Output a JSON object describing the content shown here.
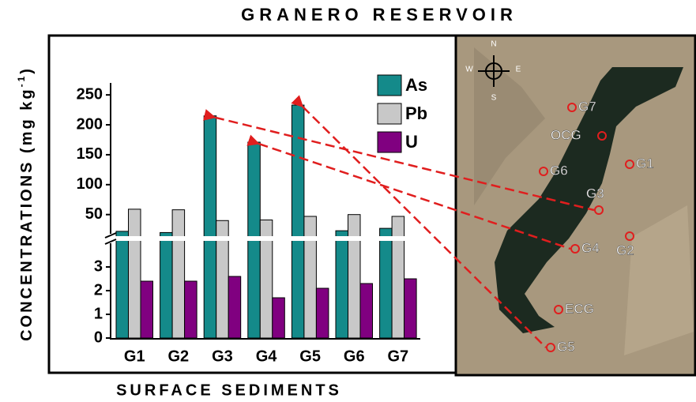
{
  "chart_data": {
    "type": "bar",
    "title": "GRANERO RESERVOIR",
    "y_label": "CONCENTRATIONS (mg kg",
    "y_label_sup": "-1",
    "y_label_end": ")",
    "x_label": "SURFACE SEDIMENTS",
    "categories": [
      "G1",
      "G2",
      "G3",
      "G4",
      "G5",
      "G6",
      "G7"
    ],
    "series": [
      {
        "name": "As",
        "color": "#148a8a",
        "values": [
          22,
          20,
          215,
          171,
          233,
          23,
          27
        ]
      },
      {
        "name": "Pb",
        "color": "#c8c8c8",
        "values": [
          59,
          58,
          40,
          41,
          47,
          50,
          47
        ]
      },
      {
        "name": "U",
        "color": "#800080",
        "values": [
          2.4,
          2.4,
          2.6,
          1.7,
          2.1,
          2.3,
          2.5
        ]
      }
    ],
    "ylim_lower": [
      0,
      4.2
    ],
    "yticks_lower": [
      0,
      1,
      2,
      3
    ],
    "ylim_upper": [
      10,
      270
    ],
    "yticks_upper": [
      50,
      100,
      150,
      200,
      250
    ],
    "legend": "upper right"
  },
  "map": {
    "compass": [
      "N",
      "S",
      "W",
      "E"
    ],
    "sites": [
      "G7",
      "OCG",
      "G1",
      "G6",
      "G3",
      "G4",
      "G2",
      "ECG",
      "G5"
    ]
  }
}
